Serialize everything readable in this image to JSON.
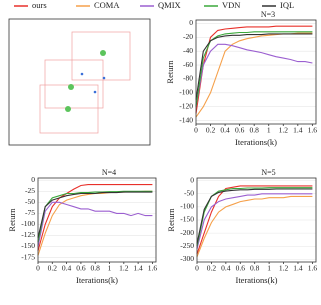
{
  "chart_data": [
    {
      "type": "line",
      "title": "N=3",
      "x_label": "Iterations(k)",
      "y_label": "Return",
      "x": [
        0,
        0.1,
        0.2,
        0.3,
        0.4,
        0.5,
        0.6,
        0.7,
        0.8,
        0.9,
        1,
        1.1,
        1.2,
        1.3,
        1.4,
        1.5,
        1.6
      ],
      "xlim": [
        0,
        1.65
      ],
      "xticks": [
        0,
        0.2,
        0.4,
        0.6,
        0.8,
        1,
        1.2,
        1.4,
        1.6
      ],
      "ylim": [
        -145,
        5
      ],
      "yticks": [
        0,
        -20,
        -40,
        -60,
        -80,
        -100,
        -120,
        -140
      ],
      "series": [
        {
          "name": "ours",
          "color": "#e8302a",
          "values": [
            -130,
            -60,
            -20,
            -10,
            -8,
            -7,
            -6,
            -5,
            -5,
            -5,
            -5,
            -4,
            -4,
            -4,
            -4,
            -4,
            -4
          ]
        },
        {
          "name": "COMA",
          "color": "#f5a04a",
          "values": [
            -135,
            -120,
            -100,
            -70,
            -40,
            -30,
            -25,
            -22,
            -20,
            -18,
            -17,
            -16,
            -15,
            -15,
            -14,
            -14,
            -14
          ]
        },
        {
          "name": "QMIX",
          "color": "#9b5fd0",
          "values": [
            -120,
            -60,
            -40,
            -30,
            -30,
            -32,
            -35,
            -38,
            -40,
            -42,
            -45,
            -48,
            -50,
            -52,
            -55,
            -55,
            -57
          ]
        },
        {
          "name": "VDN",
          "color": "#3aa83a",
          "values": [
            -120,
            -50,
            -25,
            -18,
            -15,
            -14,
            -13,
            -13,
            -12,
            -12,
            -12,
            -12,
            -12,
            -12,
            -12,
            -12,
            -12
          ]
        },
        {
          "name": "IQL",
          "color": "#333333",
          "values": [
            -110,
            -40,
            -25,
            -20,
            -18,
            -17,
            -17,
            -16,
            -16,
            -16,
            -15,
            -15,
            -15,
            -15,
            -15,
            -15,
            -15
          ]
        }
      ]
    },
    {
      "type": "line",
      "title": "N=4",
      "x_label": "Iterations(k)",
      "y_label": "Return",
      "x": [
        0,
        0.1,
        0.2,
        0.3,
        0.4,
        0.5,
        0.6,
        0.7,
        0.8,
        0.9,
        1,
        1.1,
        1.2,
        1.3,
        1.4,
        1.5,
        1.6
      ],
      "xlim": [
        0,
        1.65
      ],
      "xticks": [
        0,
        0.2,
        0.4,
        0.6,
        0.8,
        1,
        1.2,
        1.4,
        1.6
      ],
      "ylim": [
        -185,
        5
      ],
      "yticks": [
        0,
        -25,
        -50,
        -75,
        -100,
        -125,
        -150,
        -175
      ],
      "series": [
        {
          "color": "#e8302a",
          "values": [
            -160,
            -100,
            -60,
            -40,
            -30,
            -20,
            -12,
            -10,
            -10,
            -10,
            -10,
            -10,
            -10,
            -10,
            -10,
            -10,
            -10
          ]
        },
        {
          "color": "#f5a04a",
          "values": [
            -170,
            -120,
            -80,
            -55,
            -45,
            -40,
            -35,
            -32,
            -30,
            -30,
            -28,
            -27,
            -27,
            -26,
            -26,
            -25,
            -25
          ]
        },
        {
          "color": "#9b5fd0",
          "values": [
            -150,
            -70,
            -50,
            -50,
            -55,
            -60,
            -65,
            -65,
            -70,
            -70,
            -70,
            -75,
            -75,
            -80,
            -75,
            -80,
            -80
          ]
        },
        {
          "color": "#3aa83a",
          "values": [
            -140,
            -60,
            -40,
            -35,
            -30,
            -30,
            -28,
            -28,
            -27,
            -27,
            -26,
            -26,
            -25,
            -25,
            -25,
            -25,
            -25
          ]
        },
        {
          "color": "#333333",
          "values": [
            -130,
            -60,
            -45,
            -40,
            -35,
            -32,
            -30,
            -30,
            -30,
            -28,
            -28,
            -28,
            -27,
            -27,
            -27,
            -27,
            -27
          ]
        }
      ]
    },
    {
      "type": "line",
      "title": "N=5",
      "x_label": "Iterations(k)",
      "y_label": "Return",
      "x": [
        0,
        0.1,
        0.2,
        0.3,
        0.4,
        0.5,
        0.6,
        0.7,
        0.8,
        0.9,
        1,
        1.1,
        1.2,
        1.3,
        1.4,
        1.5,
        1.6
      ],
      "xlim": [
        0,
        1.65
      ],
      "xticks": [
        0,
        0.2,
        0.4,
        0.6,
        0.8,
        1,
        1.2,
        1.4,
        1.6
      ],
      "ylim": [
        -310,
        10
      ],
      "yticks": [
        0,
        -50,
        -100,
        -150,
        -200,
        -250,
        -300
      ],
      "series": [
        {
          "color": "#e8302a",
          "values": [
            -280,
            -200,
            -120,
            -60,
            -30,
            -25,
            -20,
            -20,
            -20,
            -20,
            -20,
            -20,
            -20,
            -20,
            -20,
            -20,
            -20
          ]
        },
        {
          "color": "#f5a04a",
          "values": [
            -290,
            -220,
            -160,
            -120,
            -100,
            -90,
            -80,
            -75,
            -70,
            -70,
            -65,
            -65,
            -65,
            -60,
            -60,
            -60,
            -60
          ]
        },
        {
          "color": "#9b5fd0",
          "values": [
            -260,
            -150,
            -100,
            -80,
            -70,
            -65,
            -60,
            -55,
            -55,
            -50,
            -50,
            -50,
            -50,
            -50,
            -50,
            -50,
            -50
          ]
        },
        {
          "color": "#3aa83a",
          "values": [
            -250,
            -120,
            -60,
            -40,
            -35,
            -30,
            -30,
            -28,
            -28,
            -28,
            -27,
            -27,
            -27,
            -27,
            -27,
            -27,
            -27
          ]
        },
        {
          "color": "#333333",
          "values": [
            -240,
            -110,
            -60,
            -45,
            -40,
            -37,
            -35,
            -35,
            -33,
            -33,
            -33,
            -32,
            -32,
            -32,
            -32,
            -32,
            -32
          ]
        }
      ]
    }
  ]
}
